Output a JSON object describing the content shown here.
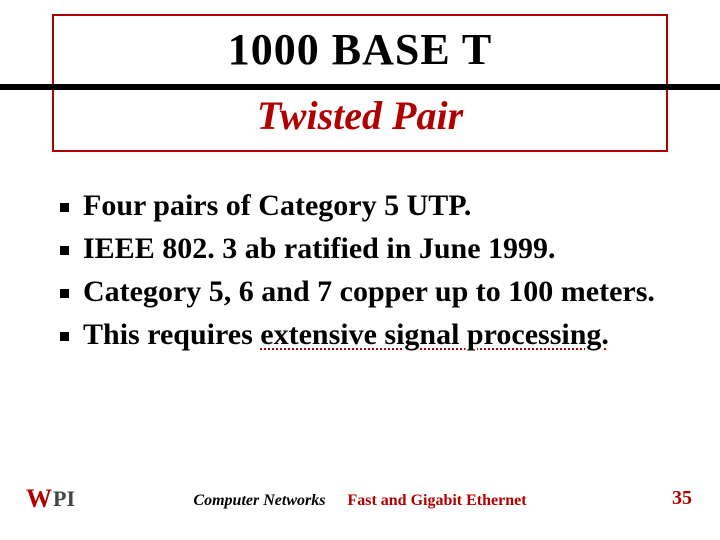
{
  "colors": {
    "accent": "#b00000",
    "text": "#000000",
    "background": "#ffffff"
  },
  "typography": {
    "family": "Comic Sans MS",
    "title_main_size": 44,
    "title_sub_size": 40,
    "bullet_size": 30,
    "footer_size": 16,
    "page_num_size": 20
  },
  "title": {
    "main": "1000 BASE T",
    "sub": "Twisted Pair"
  },
  "bullets": [
    {
      "pre": "Four pairs of Category 5 UTP.",
      "underlined": ""
    },
    {
      "pre": "IEEE 802. 3 ab ratified in June 1999.",
      "underlined": ""
    },
    {
      "pre": "Category 5, 6 and 7 copper up to 100 meters.",
      "underlined": ""
    },
    {
      "pre": "This requires ",
      "underlined": "extensive signal processing."
    }
  ],
  "footer": {
    "logo_w": "W",
    "logo_pi": "PI",
    "left": "Computer Networks",
    "right": "Fast and Gigabit Ethernet",
    "page": "35"
  }
}
